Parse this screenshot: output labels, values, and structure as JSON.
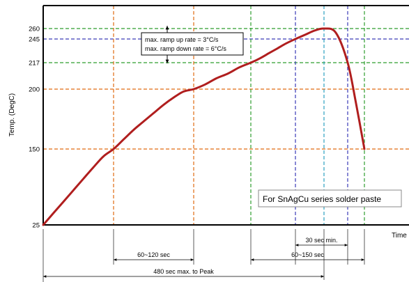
{
  "chart_data": {
    "type": "line",
    "title": "",
    "xlabel": "Time",
    "ylabel": "Temp. (DegC)",
    "yticks": [
      25,
      150,
      200,
      217,
      245,
      260
    ],
    "grid": true,
    "series": [
      {
        "color": "#b01e1e",
        "points": [
          [
            0,
            25
          ],
          [
            10,
            44
          ],
          [
            20,
            63
          ],
          [
            30,
            82
          ],
          [
            40,
            101
          ],
          [
            50,
            120
          ],
          [
            60,
            138
          ],
          [
            70,
            150
          ],
          [
            80,
            158
          ],
          [
            90,
            166
          ],
          [
            100,
            173
          ],
          [
            110,
            180
          ],
          [
            120,
            187
          ],
          [
            130,
            193
          ],
          [
            140,
            198
          ],
          [
            150,
            200
          ],
          [
            160,
            203
          ],
          [
            170,
            207
          ],
          [
            180,
            210
          ],
          [
            190,
            214
          ],
          [
            200,
            217
          ],
          [
            210,
            222
          ],
          [
            220,
            228
          ],
          [
            230,
            234
          ],
          [
            240,
            240
          ],
          [
            250,
            245
          ],
          [
            260,
            251
          ],
          [
            270,
            257
          ],
          [
            280,
            260
          ],
          [
            290,
            254
          ],
          [
            300,
            217
          ],
          [
            310,
            188
          ],
          [
            320,
            150
          ]
        ]
      }
    ],
    "reference_lines": [
      {
        "axis": "y",
        "value": 260,
        "color": "#2e9e2e"
      },
      {
        "axis": "y",
        "value": 245,
        "color": "#3a3ab8"
      },
      {
        "axis": "y",
        "value": 217,
        "color": "#2e9e2e"
      },
      {
        "axis": "y",
        "value": 200,
        "color": "#e06a10"
      },
      {
        "axis": "y",
        "value": 150,
        "color": "#e06a10"
      },
      {
        "axis": "x",
        "value": 70,
        "color": "#e06a10"
      },
      {
        "axis": "x",
        "value": 150,
        "color": "#e06a10"
      },
      {
        "axis": "x",
        "value": 200,
        "color": "#2e9e2e"
      },
      {
        "axis": "x",
        "value": 250,
        "color": "#3a3ab8"
      },
      {
        "axis": "x",
        "value": 280,
        "color": "#2ba0c0"
      },
      {
        "axis": "x",
        "value": 300,
        "color": "#3a3ab8"
      },
      {
        "axis": "x",
        "value": 320,
        "color": "#2e9e2e"
      }
    ],
    "annotations": {
      "ramp_up": "max. ramp up rate = 3°C/s",
      "ramp_down": "max. ramp down rate = 6°C/s",
      "legend_box": "For SnAgCu series solder paste",
      "spans": [
        {
          "label": "60~120 sec",
          "from": 70,
          "to": 150
        },
        {
          "label": "30 sec min.",
          "from": 250,
          "to": 300
        },
        {
          "label": "60~150 sec",
          "from": 200,
          "to": 320
        },
        {
          "label": "480 sec max. to Peak",
          "from": 0,
          "to": 280
        }
      ]
    }
  }
}
